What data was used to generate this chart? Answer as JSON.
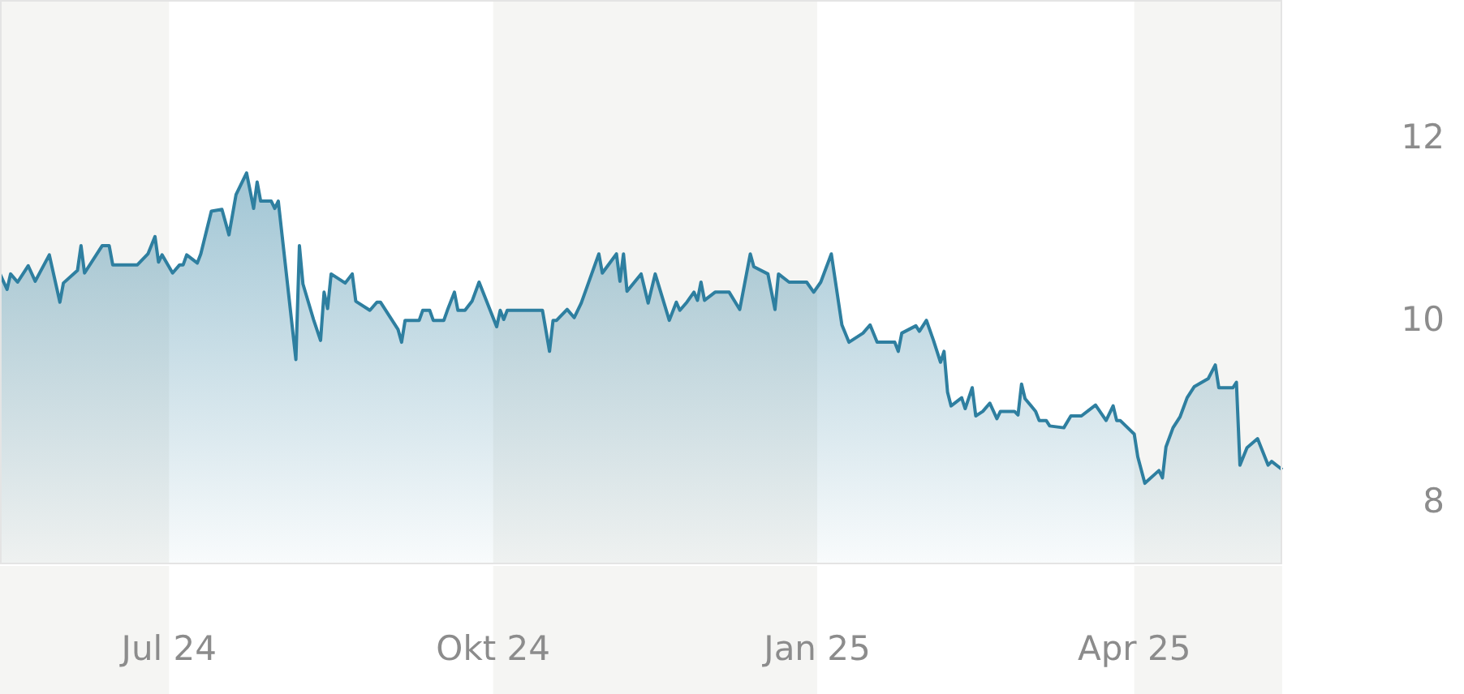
{
  "chart_data": {
    "type": "area",
    "x": [
      "2024-05-14",
      "2024-05-16",
      "2024-05-17",
      "2024-05-19",
      "2024-05-22",
      "2024-05-24",
      "2024-05-28",
      "2024-05-31",
      "2024-06-01",
      "2024-06-05",
      "2024-06-06",
      "2024-06-07",
      "2024-06-12",
      "2024-06-14",
      "2024-06-15",
      "2024-06-22",
      "2024-06-25",
      "2024-06-27",
      "2024-06-28",
      "2024-06-29",
      "2024-07-02",
      "2024-07-04",
      "2024-07-05",
      "2024-07-06",
      "2024-07-09",
      "2024-07-10",
      "2024-07-13",
      "2024-07-16",
      "2024-07-18",
      "2024-07-20",
      "2024-07-23",
      "2024-07-25",
      "2024-07-26",
      "2024-07-27",
      "2024-07-30",
      "2024-07-31",
      "2024-08-01",
      "2024-08-06",
      "2024-08-07",
      "2024-08-08",
      "2024-08-11",
      "2024-08-13",
      "2024-08-14",
      "2024-08-15",
      "2024-08-16",
      "2024-08-20",
      "2024-08-22",
      "2024-08-23",
      "2024-08-27",
      "2024-08-29",
      "2024-08-30",
      "2024-09-04",
      "2024-09-05",
      "2024-09-06",
      "2024-09-10",
      "2024-09-11",
      "2024-09-13",
      "2024-09-14",
      "2024-09-17",
      "2024-09-18",
      "2024-09-20",
      "2024-09-21",
      "2024-09-23",
      "2024-09-25",
      "2024-09-27",
      "2024-10-02",
      "2024-10-03",
      "2024-10-04",
      "2024-10-05",
      "2024-10-15",
      "2024-10-17",
      "2024-10-18",
      "2024-10-19",
      "2024-10-22",
      "2024-10-24",
      "2024-10-26",
      "2024-10-31",
      "2024-11-01",
      "2024-11-05",
      "2024-11-06",
      "2024-11-07",
      "2024-11-08",
      "2024-11-12",
      "2024-11-14",
      "2024-11-16",
      "2024-11-20",
      "2024-11-22",
      "2024-11-23",
      "2024-11-25",
      "2024-11-27",
      "2024-11-28",
      "2024-11-29",
      "2024-11-30",
      "2024-12-03",
      "2024-12-07",
      "2024-12-10",
      "2024-12-13",
      "2024-12-14",
      "2024-12-18",
      "2024-12-20",
      "2024-12-21",
      "2024-12-24",
      "2024-12-29",
      "2024-12-31",
      "2025-01-02",
      "2025-01-05",
      "2025-01-08",
      "2025-01-10",
      "2025-01-14",
      "2025-01-16",
      "2025-01-18",
      "2025-01-23",
      "2025-01-24",
      "2025-01-25",
      "2025-01-29",
      "2025-01-30",
      "2025-02-01",
      "2025-02-03",
      "2025-02-05",
      "2025-02-06",
      "2025-02-07",
      "2025-02-08",
      "2025-02-11",
      "2025-02-12",
      "2025-02-14",
      "2025-02-15",
      "2025-02-17",
      "2025-02-19",
      "2025-02-21",
      "2025-02-22",
      "2025-02-26",
      "2025-02-27",
      "2025-02-28",
      "2025-03-01",
      "2025-03-04",
      "2025-03-05",
      "2025-03-07",
      "2025-03-08",
      "2025-03-12",
      "2025-03-14",
      "2025-03-17",
      "2025-03-21",
      "2025-03-24",
      "2025-03-26",
      "2025-03-27",
      "2025-03-28",
      "2025-04-01",
      "2025-04-02",
      "2025-04-04",
      "2025-04-08",
      "2025-04-09",
      "2025-04-10",
      "2025-04-12",
      "2025-04-14",
      "2025-04-16",
      "2025-04-18",
      "2025-04-22",
      "2025-04-24",
      "2025-04-25",
      "2025-04-29",
      "2025-04-30",
      "2025-05-01",
      "2025-05-03",
      "2025-05-06",
      "2025-05-09",
      "2025-05-10",
      "2025-05-13"
    ],
    "series": [
      {
        "color": "#2e7fa0",
        "values": [
          10.49,
          10.32,
          10.49,
          10.4,
          10.58,
          10.41,
          10.7,
          10.18,
          10.39,
          10.53,
          10.8,
          10.5,
          10.8,
          10.8,
          10.59,
          10.59,
          10.71,
          10.9,
          10.62,
          10.7,
          10.5,
          10.59,
          10.59,
          10.7,
          10.61,
          10.71,
          11.18,
          11.2,
          10.92,
          11.36,
          11.6,
          11.21,
          11.5,
          11.29,
          11.29,
          11.21,
          11.29,
          9.55,
          10.8,
          10.38,
          9.99,
          9.76,
          10.29,
          10.11,
          10.49,
          10.39,
          10.49,
          10.19,
          10.09,
          10.18,
          10.18,
          9.88,
          9.74,
          9.98,
          9.98,
          10.09,
          10.09,
          9.98,
          9.98,
          10.09,
          10.29,
          10.09,
          10.09,
          10.19,
          10.4,
          9.91,
          10.09,
          9.99,
          10.09,
          10.09,
          9.64,
          9.98,
          9.98,
          10.1,
          10.01,
          10.17,
          10.71,
          10.5,
          10.71,
          10.41,
          10.71,
          10.3,
          10.49,
          10.17,
          10.49,
          9.98,
          10.18,
          10.09,
          10.18,
          10.29,
          10.2,
          10.4,
          10.2,
          10.29,
          10.29,
          10.1,
          10.71,
          10.57,
          10.49,
          10.1,
          10.49,
          10.4,
          10.4,
          10.29,
          10.4,
          10.71,
          9.93,
          9.74,
          9.84,
          9.93,
          9.74,
          9.74,
          9.64,
          9.84,
          9.92,
          9.86,
          9.98,
          9.76,
          9.52,
          9.64,
          9.19,
          9.04,
          9.13,
          9.01,
          9.24,
          8.93,
          8.98,
          9.07,
          8.9,
          8.98,
          8.98,
          8.94,
          9.28,
          9.12,
          8.98,
          8.88,
          8.88,
          8.82,
          8.8,
          8.93,
          8.93,
          9.05,
          8.88,
          9.04,
          8.88,
          8.88,
          8.73,
          8.48,
          8.19,
          8.33,
          8.25,
          8.59,
          8.8,
          8.92,
          9.13,
          9.25,
          9.34,
          9.49,
          9.24,
          9.24,
          9.3,
          8.39,
          8.58,
          8.68,
          8.39,
          8.43,
          8.34
        ]
      }
    ],
    "xlim": [
      "2024-05-14",
      "2025-05-13"
    ],
    "xticks": [
      {
        "value": "2024-07-01",
        "label": "Jul 24"
      },
      {
        "value": "2024-10-01",
        "label": "Okt 24"
      },
      {
        "value": "2025-01-01",
        "label": "Jan 25"
      },
      {
        "value": "2025-04-01",
        "label": "Apr 25"
      }
    ],
    "ylim": [
      7.3,
      13.5
    ],
    "yticks": [
      8,
      10,
      12
    ],
    "bands": [
      {
        "axis": "x",
        "from": "2024-05-14",
        "to": "2024-07-01",
        "color": "#f5f5f3"
      },
      {
        "axis": "x",
        "from": "2024-10-01",
        "to": "2025-01-01",
        "color": "#f5f5f3"
      },
      {
        "axis": "x",
        "from": "2025-04-01",
        "to": "2025-05-13",
        "color": "#f5f5f3"
      }
    ],
    "grid": false
  }
}
